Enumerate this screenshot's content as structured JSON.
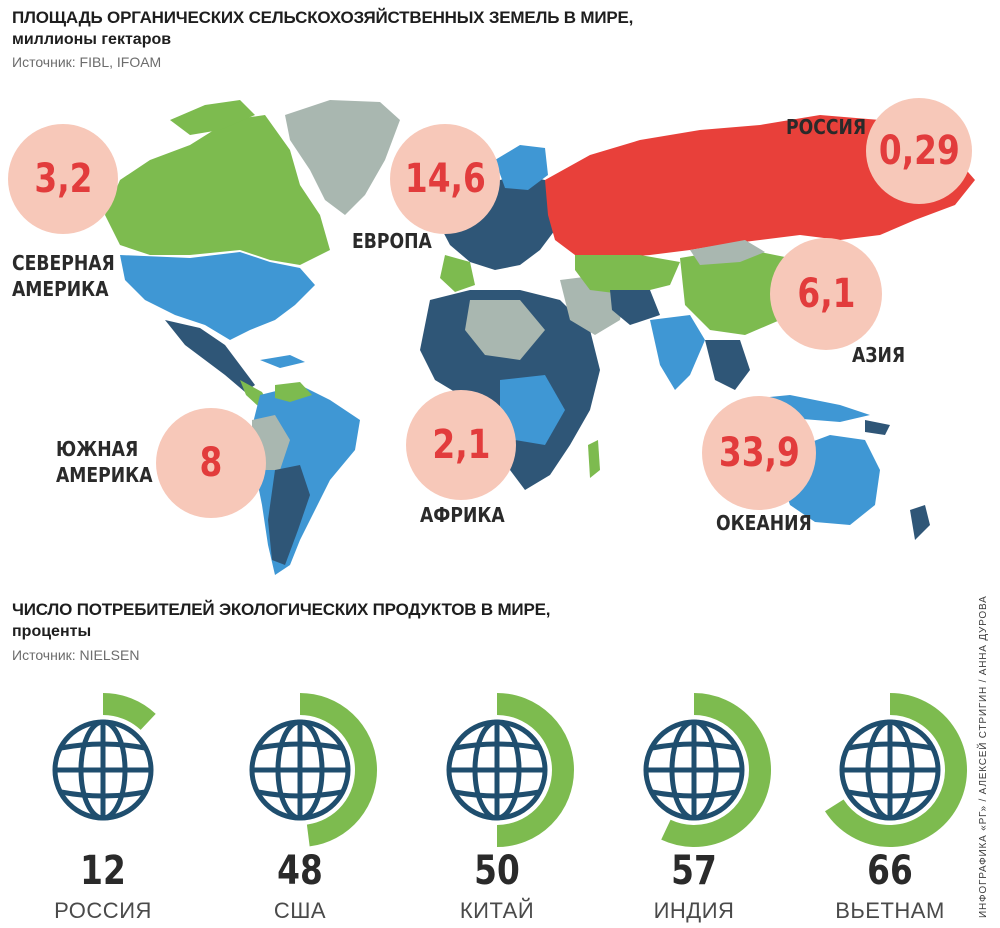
{
  "map_section": {
    "title": "ПЛОЩАДЬ ОРГАНИЧЕСКИХ СЕЛЬСКОХОЗЯЙСТВЕННЫХ ЗЕМЕЛЬ В МИРЕ,",
    "subtitle": "миллионы гектаров",
    "source": "Источник: FIBL, IFOAM"
  },
  "consumer_section": {
    "title": "ЧИСЛО ПОТРЕБИТЕЛЕЙ ЭКОЛОГИЧЕСКИХ ПРОДУКТОВ В МИРЕ,",
    "subtitle": "проценты",
    "source": "Источник: NIELSEN"
  },
  "credit": "ИНФОГРАФИКА «РГ» / АЛЕКСЕЙ СТРИГИН / АННА ДУРОВА",
  "colors": {
    "bubble_fill": "#f7c8b9",
    "bubble_text": "#e23c3c",
    "russia": "#e8403a",
    "green": "#7dbb4f",
    "blue": "#3f97d4",
    "navy": "#2f5677",
    "grey": "#a9b7b0",
    "gauge_arc": "#7dbb4f",
    "globe": "#1f4e6e"
  },
  "chart_data": [
    {
      "type": "map",
      "title": "ПЛОЩАДЬ ОРГАНИЧЕСКИХ СЕЛЬСКОХОЗЯЙСТВЕННЫХ ЗЕМЕЛЬ В МИРЕ,",
      "units": "миллионы гектаров",
      "regions": [
        {
          "key": "na",
          "name": "СЕВЕРНАЯ АМЕРИКА",
          "lines": [
            "СЕВЕРНАЯ",
            "АМЕРИКА"
          ],
          "value": "3,2"
        },
        {
          "key": "eu",
          "name": "ЕВРОПА",
          "lines": [
            "ЕВРОПА"
          ],
          "value": "14,6"
        },
        {
          "key": "ru",
          "name": "РОССИЯ",
          "lines": [
            "РОССИЯ"
          ],
          "value": "0,29"
        },
        {
          "key": "as",
          "name": "АЗИЯ",
          "lines": [
            "АЗИЯ"
          ],
          "value": "6,1"
        },
        {
          "key": "sa",
          "name": "ЮЖНАЯ АМЕРИКА",
          "lines": [
            "ЮЖНАЯ",
            "АМЕРИКА"
          ],
          "value": "8"
        },
        {
          "key": "af",
          "name": "АФРИКА",
          "lines": [
            "АФРИКА"
          ],
          "value": "2,1"
        },
        {
          "key": "oc",
          "name": "ОКЕАНИЯ",
          "lines": [
            "ОКЕАНИЯ"
          ],
          "value": "33,9"
        }
      ]
    },
    {
      "type": "gauge",
      "title": "ЧИСЛО ПОТРЕБИТЕЛЕЙ ЭКОЛОГИЧЕСКИХ ПРОДУКТОВ В МИРЕ,",
      "units": "проценты",
      "categories": [
        "РОССИЯ",
        "США",
        "КИТАЙ",
        "ИНДИЯ",
        "ВЬЕТНАМ"
      ],
      "values": [
        12,
        48,
        50,
        57,
        66
      ],
      "max": 100
    }
  ]
}
